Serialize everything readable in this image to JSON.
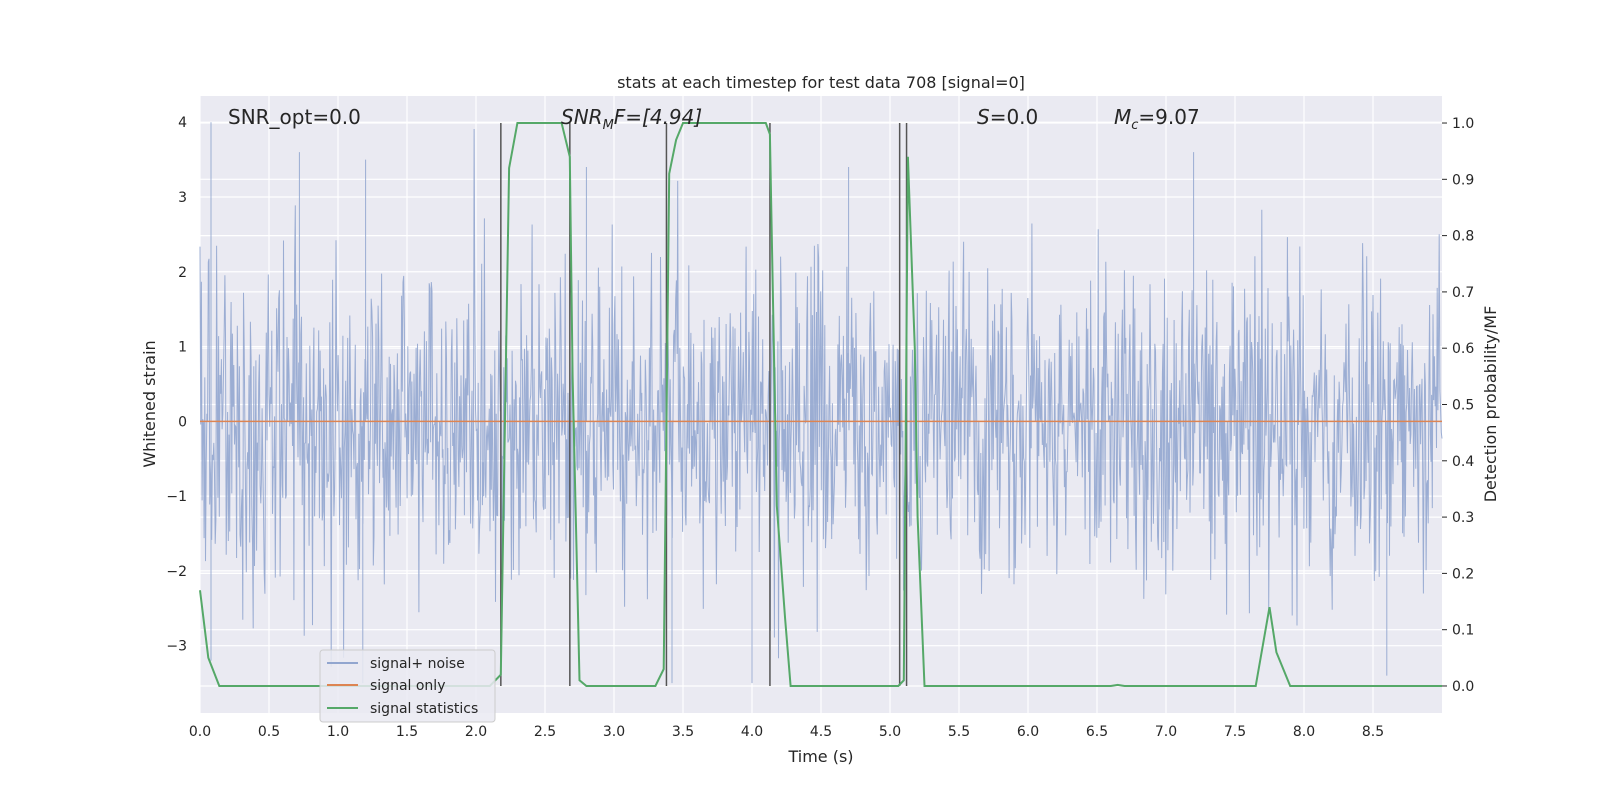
{
  "chart_data": {
    "type": "line",
    "title": "stats at each timestep for test data 708 [signal=0]",
    "xlabel": "Time (s)",
    "ylabel": "Whitened strain",
    "y2label": "Detection probability/MF",
    "xlim": [
      0.0,
      9.0
    ],
    "ylim": [
      -3.9,
      4.35
    ],
    "y2lim": [
      -0.048,
      1.048
    ],
    "xticks": [
      0.0,
      0.5,
      1.0,
      1.5,
      2.0,
      2.5,
      3.0,
      3.5,
      4.0,
      4.5,
      5.0,
      5.5,
      6.0,
      6.5,
      7.0,
      7.5,
      8.0,
      8.5
    ],
    "xtick_labels": [
      "0.0",
      "0.5",
      "1.0",
      "1.5",
      "2.0",
      "2.5",
      "3.0",
      "3.5",
      "4.0",
      "4.5",
      "5.0",
      "5.5",
      "6.0",
      "6.5",
      "7.0",
      "7.5",
      "8.0",
      "8.5"
    ],
    "yticks": [
      -3,
      -2,
      -1,
      0,
      1,
      2,
      3,
      4
    ],
    "ytick_labels": [
      "−3",
      "−2",
      "−1",
      "0",
      "1",
      "2",
      "3",
      "4"
    ],
    "y2ticks": [
      0.0,
      0.1,
      0.2,
      0.3,
      0.4,
      0.5,
      0.6,
      0.7,
      0.8,
      0.9,
      1.0
    ],
    "y2tick_labels": [
      "0.0",
      "0.1",
      "0.2",
      "0.3",
      "0.4",
      "0.5",
      "0.6",
      "0.7",
      "0.8",
      "0.9",
      "1.0"
    ],
    "grid": true,
    "legend_position": "lower-left",
    "annotations": {
      "snr_opt": "SNR_opt=0.0",
      "snr_mf_main": "SNR",
      "snr_mf_sub": "M",
      "snr_mf_rest": "F=[4.94]",
      "s_main": "S",
      "s_rest": "=0.0",
      "mc_main": "M",
      "mc_sub": "c",
      "mc_rest": "=9.07"
    },
    "series": [
      {
        "name": "signal+ noise",
        "color": "#92a6cf",
        "axis": "left",
        "description_values": {
          "peak_positive": [
            [
              0.08,
              4.0
            ],
            [
              0.72,
              3.6
            ],
            [
              1.2,
              3.5
            ],
            [
              2.8,
              3.4
            ],
            [
              4.7,
              3.4
            ],
            [
              7.2,
              3.6
            ]
          ],
          "peak_negative": [
            [
              0.08,
              -3.2
            ],
            [
              1.18,
              -3.5
            ],
            [
              3.42,
              -3.5
            ],
            [
              4.0,
              -3.5
            ],
            [
              8.6,
              -3.4
            ]
          ]
        }
      },
      {
        "name": "signal only",
        "color": "#dd8452",
        "axis": "left",
        "x": [
          0.0,
          9.0
        ],
        "y": [
          0.0,
          0.0
        ]
      },
      {
        "name": "signal statistics",
        "color": "#55a868",
        "axis": "right",
        "x": [
          0.0,
          0.06,
          0.14,
          2.1,
          2.18,
          2.24,
          2.3,
          2.38,
          2.62,
          2.68,
          2.7,
          2.75,
          2.8,
          3.3,
          3.36,
          3.4,
          3.45,
          3.5,
          4.1,
          4.13,
          4.18,
          4.24,
          4.28,
          5.06,
          5.1,
          5.13,
          5.18,
          5.2,
          5.25,
          5.3,
          6.6,
          6.65,
          6.7,
          7.65,
          7.75,
          7.8,
          7.9,
          9.0
        ],
        "y": [
          0.17,
          0.05,
          0.0,
          0.0,
          0.02,
          0.92,
          1.0,
          1.0,
          1.0,
          0.94,
          0.55,
          0.01,
          0.0,
          0.0,
          0.03,
          0.91,
          0.97,
          1.0,
          1.0,
          0.98,
          0.32,
          0.12,
          0.0,
          0.0,
          0.01,
          0.94,
          0.6,
          0.3,
          0.0,
          0.0,
          0.0,
          0.002,
          0.0,
          0.0,
          0.14,
          0.06,
          0.0,
          0.0
        ]
      }
    ],
    "vlines": [
      2.18,
      2.68,
      3.38,
      4.13,
      5.07,
      5.12
    ]
  }
}
